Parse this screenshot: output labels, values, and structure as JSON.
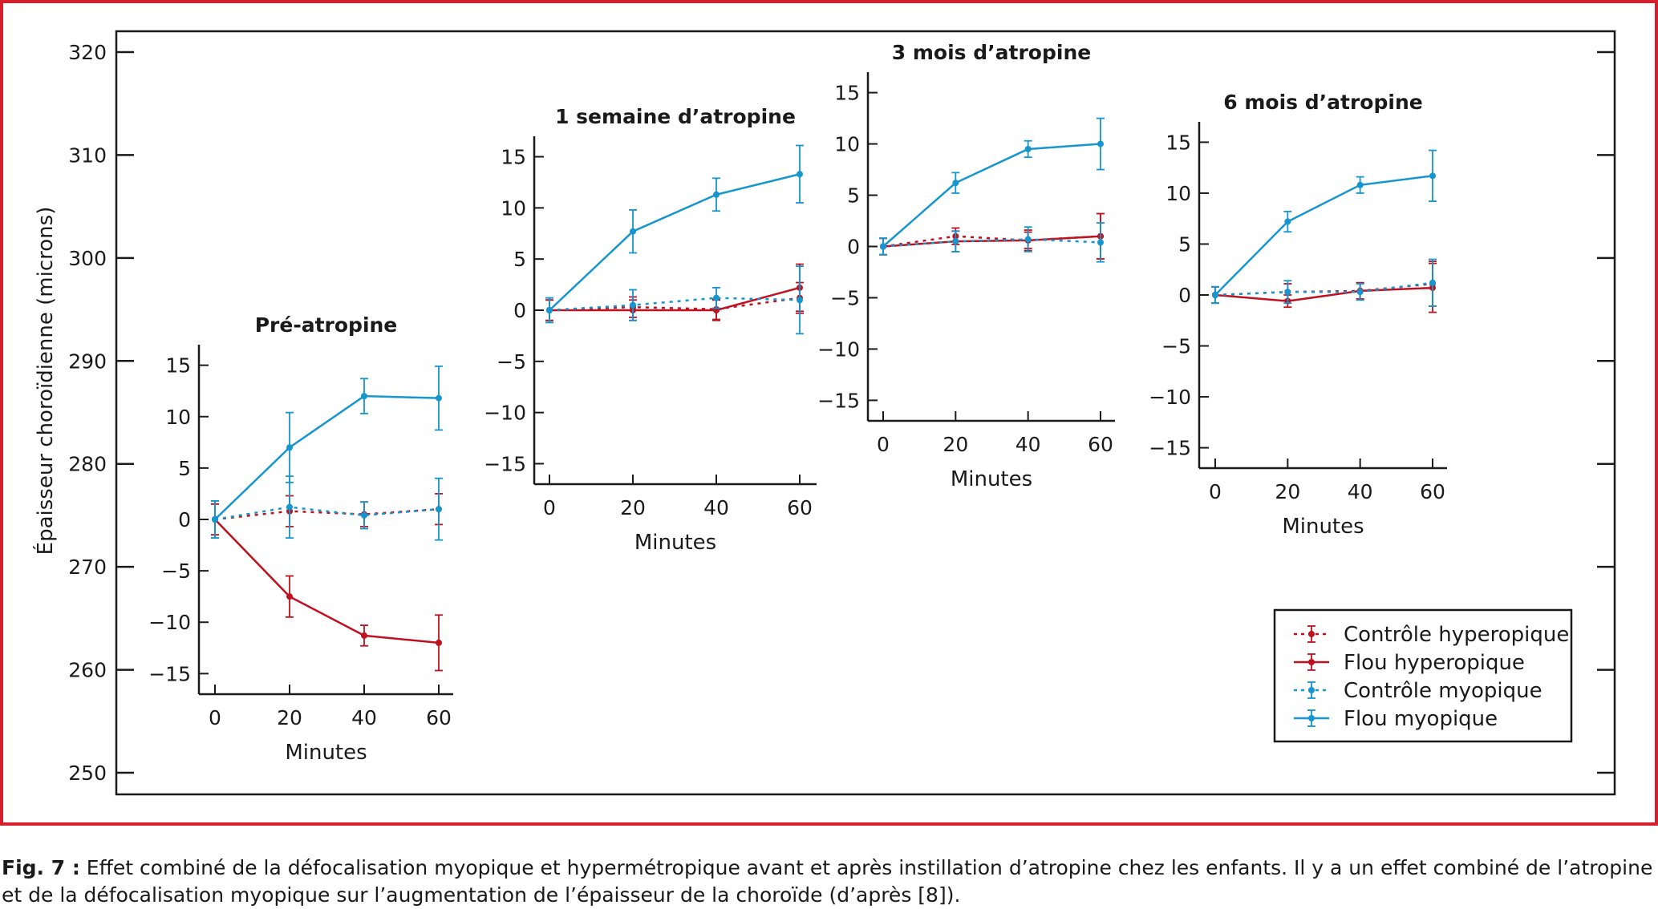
{
  "colors": {
    "hyperopic": "#c0111f",
    "myopic": "#1596cf",
    "frame": "#d51f2c",
    "axis": "#1a1a1a"
  },
  "caption": {
    "label": "Fig. 7 :",
    "text": "Effet combiné de la défocalisation myopique et hypermétropique avant et après instillation d’atropine chez les enfants. Il y a un effet combiné de l’atropine et de la défocalisation myopique sur l’augmentation de l’épaisseur de la choroïde (d’après [8])."
  },
  "chart_data": {
    "type": "line",
    "outer_axis": {
      "ylabel": "Épaisseur choroïdienne (microns)",
      "ylim": [
        250,
        320
      ],
      "yticks": [
        250,
        260,
        270,
        280,
        290,
        300,
        310,
        320
      ]
    },
    "legend": {
      "position": "bottom-right",
      "entries": [
        {
          "name": "Contrôle hyperopique",
          "color_key": "hyperopic",
          "dashed": true
        },
        {
          "name": "Flou hyperopique",
          "color_key": "hyperopic",
          "dashed": false
        },
        {
          "name": "Contrôle myopique",
          "color_key": "myopic",
          "dashed": true
        },
        {
          "name": "Flou myopique",
          "color_key": "myopic",
          "dashed": false
        }
      ]
    },
    "panels": [
      {
        "title": "Pré-atropine",
        "xlabel": "Minutes",
        "x": [
          0,
          20,
          40,
          60
        ],
        "ylim": [
          -17,
          17
        ],
        "yticks": [
          -15,
          -10,
          -5,
          0,
          5,
          10,
          15
        ],
        "series": [
          {
            "name": "Contrôle hyperopique",
            "values": [
              0,
              0.8,
              0.5,
              1.0
            ],
            "errors": [
              1.5,
              1.5,
              1.2,
              1.5
            ]
          },
          {
            "name": "Flou hyperopique",
            "values": [
              0,
              -7.5,
              -11.3,
              -12.0
            ],
            "errors": [
              1.5,
              2.0,
              1.0,
              2.7
            ]
          },
          {
            "name": "Contrôle myopique",
            "values": [
              0,
              1.2,
              0.4,
              1.0
            ],
            "errors": [
              1.8,
              3.0,
              1.3,
              3.0
            ]
          },
          {
            "name": "Flou myopique",
            "values": [
              0,
              7.0,
              12.0,
              11.8
            ],
            "errors": [
              1.8,
              3.4,
              1.7,
              3.1
            ]
          }
        ]
      },
      {
        "title": "1 semaine d’atropine",
        "xlabel": "Minutes",
        "x": [
          0,
          20,
          40,
          60
        ],
        "ylim": [
          -17,
          17
        ],
        "yticks": [
          -15,
          -10,
          -5,
          0,
          5,
          10,
          15
        ],
        "series": [
          {
            "name": "Contrôle hyperopique",
            "values": [
              0,
              0.3,
              0.1,
              1.2
            ],
            "errors": [
              1.0,
              1.0,
              1.0,
              1.5
            ]
          },
          {
            "name": "Flou hyperopique",
            "values": [
              0,
              0,
              0,
              2.2
            ],
            "errors": [
              1.0,
              1.0,
              1.0,
              2.3
            ]
          },
          {
            "name": "Contrôle myopique",
            "values": [
              0,
              0.5,
              1.2,
              1.0
            ],
            "errors": [
              1.2,
              1.5,
              1.0,
              3.3
            ]
          },
          {
            "name": "Flou myopique",
            "values": [
              0,
              7.7,
              11.3,
              13.3
            ],
            "errors": [
              1.2,
              2.1,
              1.6,
              2.8
            ]
          }
        ]
      },
      {
        "title": "3 mois d’atropine",
        "xlabel": "Minutes",
        "x": [
          0,
          20,
          40,
          60
        ],
        "ylim": [
          -17,
          17
        ],
        "yticks": [
          -15,
          -10,
          -5,
          0,
          5,
          10,
          15
        ],
        "series": [
          {
            "name": "Contrôle hyperopique",
            "values": [
              0,
              1.0,
              0.6,
              1.0
            ],
            "errors": [
              0.8,
              0.8,
              1.0,
              2.2
            ]
          },
          {
            "name": "Flou hyperopique",
            "values": [
              0,
              0.5,
              0.6,
              1.0
            ],
            "errors": [
              0.8,
              1.0,
              0.8,
              2.2
            ]
          },
          {
            "name": "Contrôle myopique",
            "values": [
              0,
              0.5,
              0.7,
              0.4
            ],
            "errors": [
              0.8,
              1.0,
              1.2,
              1.9
            ]
          },
          {
            "name": "Flou myopique",
            "values": [
              0,
              6.2,
              9.5,
              10.0
            ],
            "errors": [
              0.8,
              1.0,
              0.8,
              2.5
            ]
          }
        ]
      },
      {
        "title": "6 mois d’atropine",
        "xlabel": "Minutes",
        "x": [
          0,
          20,
          40,
          60
        ],
        "ylim": [
          -17,
          17
        ],
        "yticks": [
          -15,
          -10,
          -5,
          0,
          5,
          10,
          15
        ],
        "series": [
          {
            "name": "Contrôle hyperopique",
            "values": [
              0,
              0.3,
              0.4,
              1.1
            ],
            "errors": [
              0.8,
              0.8,
              0.8,
              2.2
            ]
          },
          {
            "name": "Flou hyperopique",
            "values": [
              0,
              -0.6,
              0.4,
              0.7
            ],
            "errors": [
              0.8,
              0.6,
              0.8,
              2.4
            ]
          },
          {
            "name": "Contrôle myopique",
            "values": [
              0,
              0.3,
              0.3,
              1.2
            ],
            "errors": [
              0.8,
              1.1,
              0.8,
              2.3
            ]
          },
          {
            "name": "Flou myopique",
            "values": [
              0,
              7.2,
              10.8,
              11.7
            ],
            "errors": [
              0.8,
              1.0,
              0.8,
              2.5
            ]
          }
        ]
      }
    ]
  }
}
